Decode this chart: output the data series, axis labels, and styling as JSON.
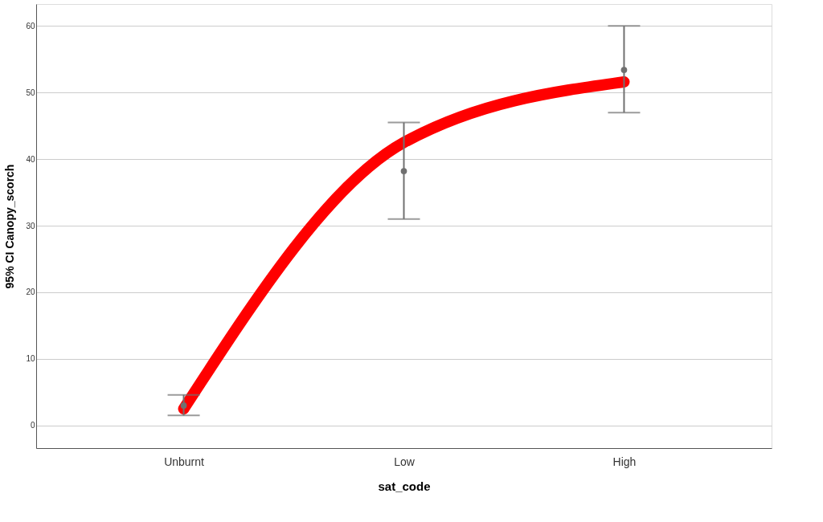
{
  "chart_data": {
    "type": "scatter",
    "xlabel": "sat_code",
    "ylabel": "95% CI Canopy_scorch",
    "categories": [
      "Unburnt",
      "Low",
      "High"
    ],
    "ylim": [
      -3.4,
      63.3
    ],
    "yticks": [
      0,
      10,
      20,
      30,
      40,
      50,
      60
    ],
    "grid": "y",
    "marker": "circle",
    "series": [
      {
        "color": "#707070",
        "values": [
          3,
          38.2,
          53.4
        ],
        "errors": [
          [
            1.5,
            4.6
          ],
          [
            31,
            45.5
          ],
          [
            47,
            60
          ]
        ]
      },
      {
        "type": "line",
        "color": "#ff0000",
        "marker": "none",
        "values": [
          2.5,
          42.5,
          51.6
        ]
      }
    ]
  }
}
